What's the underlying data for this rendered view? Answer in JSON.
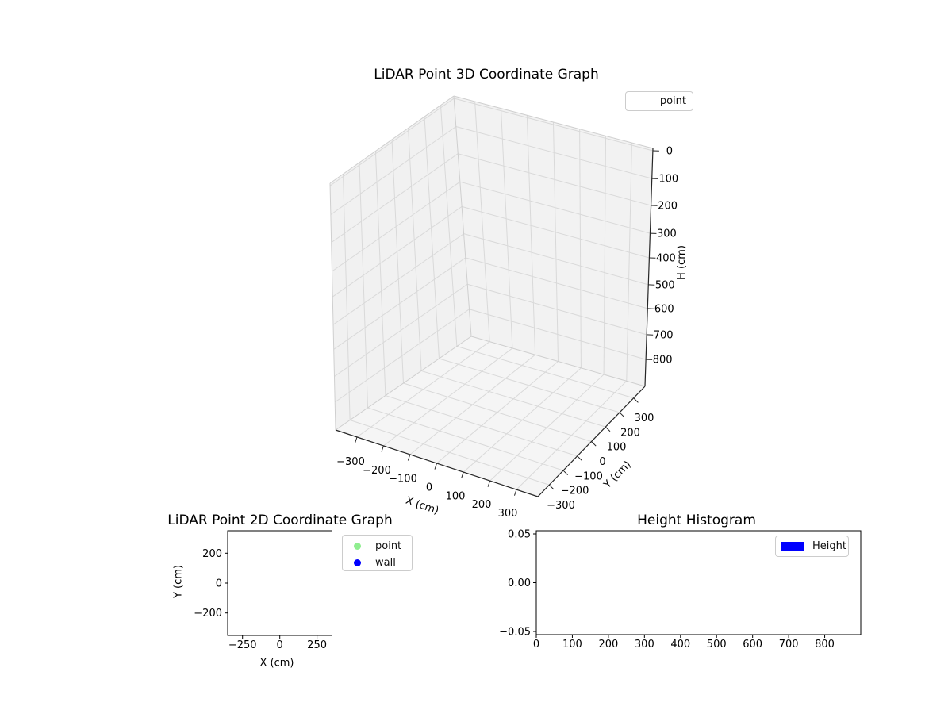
{
  "chart_data": [
    {
      "id": "lidar-3d",
      "type": "scatter3d",
      "title": "LiDAR Point 3D Coordinate Graph",
      "xlabel": "X (cm)",
      "ylabel": "Y (cm)",
      "zlabel": "H (cm)",
      "xticks": [
        -300,
        -200,
        -100,
        0,
        100,
        200,
        300
      ],
      "yticks": [
        -300,
        -200,
        -100,
        0,
        100,
        200,
        300
      ],
      "zticks": [
        0,
        100,
        200,
        300,
        400,
        500,
        600,
        700,
        800
      ],
      "xtick_labels": [
        "−300",
        "−200",
        "−100",
        "0",
        "100",
        "200",
        "300"
      ],
      "ytick_labels": [
        "−300",
        "−200",
        "−100",
        "0",
        "100",
        "200",
        "300"
      ],
      "ztick_labels": [
        "0",
        "100",
        "200",
        "300",
        "400",
        "500",
        "600",
        "700",
        "800"
      ],
      "zaxis_inverted": true,
      "grid": true,
      "legend": {
        "labels": [
          "point"
        ],
        "location": "upper right"
      },
      "series": [
        {
          "name": "point",
          "points": []
        }
      ],
      "colors": {
        "pane": "#f2f2f2",
        "grid": "#d9d9d9",
        "axis": "#262626"
      }
    },
    {
      "id": "lidar-2d",
      "type": "scatter",
      "title": "LiDAR Point 2D Coordinate Graph",
      "xlabel": "X (cm)",
      "ylabel": "Y (cm)",
      "xticks": [
        -250,
        0,
        250
      ],
      "yticks": [
        -200,
        0,
        200
      ],
      "xtick_labels": [
        "−250",
        "0",
        "250"
      ],
      "ytick_labels": [
        "−200",
        "0",
        "200"
      ],
      "xlim": [
        -350,
        350
      ],
      "ylim": [
        -350,
        350
      ],
      "grid": false,
      "legend": {
        "labels": [
          "point",
          "wall"
        ],
        "colors": [
          "#90EE90",
          "#0000FF"
        ],
        "location": "upper right outside"
      },
      "series": [
        {
          "name": "point",
          "color": "#90EE90",
          "points": []
        },
        {
          "name": "wall",
          "color": "#0000FF",
          "points": []
        }
      ]
    },
    {
      "id": "height-histogram",
      "type": "histogram",
      "title": "Height Histogram",
      "xlabel": "",
      "ylabel": "",
      "xticks": [
        0,
        100,
        200,
        300,
        400,
        500,
        600,
        700,
        800
      ],
      "yticks": [
        -0.05,
        0.0,
        0.05
      ],
      "xtick_labels": [
        "0",
        "100",
        "200",
        "300",
        "400",
        "500",
        "600",
        "700",
        "800"
      ],
      "ytick_labels": [
        "−0.05",
        "0.00",
        "0.05"
      ],
      "xlim": [
        0,
        900
      ],
      "ylim": [
        -0.05,
        0.05
      ],
      "grid": false,
      "legend": {
        "labels": [
          "Height"
        ],
        "colors": [
          "#0000FF"
        ],
        "location": "upper right"
      },
      "series": [
        {
          "name": "Height",
          "color": "#0000FF",
          "bins": [],
          "counts": []
        }
      ]
    }
  ]
}
